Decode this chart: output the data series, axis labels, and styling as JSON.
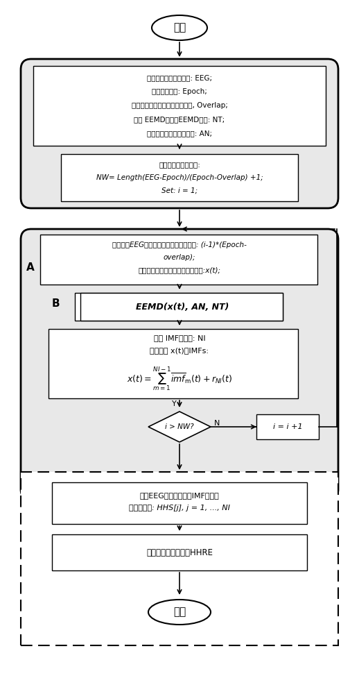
{
  "bg_color": "#ffffff",
  "line_color": "#000000",
  "box_fill": "#ffffff",
  "box_edge": "#000000",
  "loop_fill": "#f0f0f0",
  "loop_edge": "#000000",
  "dashed_fill": "#ffffff",
  "title": "",
  "start_text": "开始",
  "end_text": "结束",
  "box1_lines": [
    "得到待处理的脑电信号: EEG;",
    "设置窗口大小: Epoch;",
    "设置两个相邻窗口大小的重合率, Overlap;",
    "设置 EEMD算法的EEMD数目: NT;",
    "设置添加的白噪声的幅度: AN;"
  ],
  "box2_lines": [
    "计算华东窗口的数目:",
    "NW= Length(EEG-Epoch)/(Epoch-Overlap) +1;",
    "Set: i = 1;"
  ],
  "loop_label_A": "A",
  "box3_lines": [
    "计算原来EEG数据截取当前窗口的偏移量: (i-1)*(Epoch-",
    "overlap);",
    "准备在时间序列上的当前窗口信号:x(t);"
  ],
  "loop_label_B": "B",
  "box4_text": "EEMD(x(t), AN, NT)",
  "box5_line1": "得到 IMF的数目: NI",
  "box5_line2": "得到信号 x(t)的IMFs:",
  "box5_formula": "$x(t) = \\sum_{m=1}^{NI-1} \\overline{imf}_{\\mathrm{m}}(t) + r_{NI}(t)$",
  "diamond_text": "i > NW?",
  "diamond_yes": "Y",
  "diamond_no": "N",
  "box6_text": "i = i +1",
  "dashed_box7_lines": [
    "计算EEG信号数据每个IMF的希尔",
    "伯特黄变换: HHS[j], j = 1, ..., NI"
  ],
  "dashed_box8_text": "计算希尔伯特黄谱熵HHRE"
}
